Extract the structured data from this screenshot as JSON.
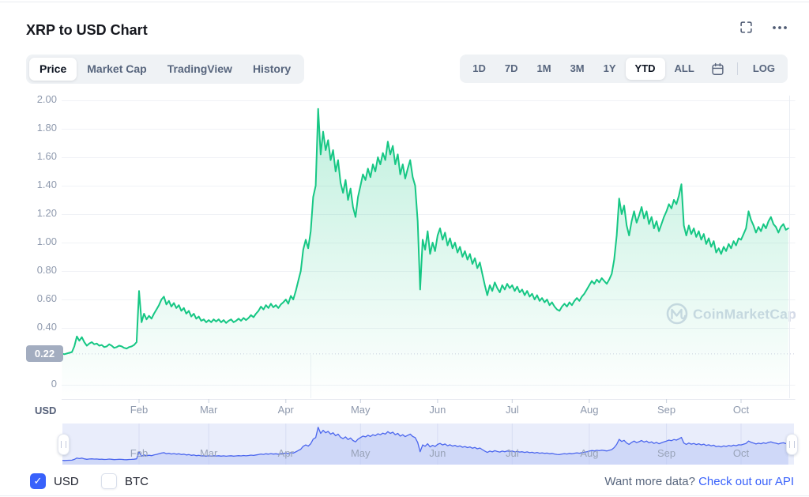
{
  "header": {
    "title": "XRP to USD Chart"
  },
  "toolbar": {
    "tabs": [
      {
        "label": "Price"
      },
      {
        "label": "Market Cap"
      },
      {
        "label": "TradingView"
      },
      {
        "label": "History"
      }
    ],
    "active_tab": "Price",
    "ranges": [
      {
        "label": "1D"
      },
      {
        "label": "7D"
      },
      {
        "label": "1M"
      },
      {
        "label": "3M"
      },
      {
        "label": "1Y"
      },
      {
        "label": "YTD"
      },
      {
        "label": "ALL"
      }
    ],
    "active_range": "YTD",
    "log_label": "LOG",
    "icons": [
      "calendar-icon"
    ]
  },
  "header_icons": [
    "fullscreen-icon",
    "more-options-icon"
  ],
  "axis": {
    "currency_label": "USD",
    "y_tick_labels": [
      "2.00",
      "1.80",
      "1.60",
      "1.40",
      "1.20",
      "1.00",
      "0.80",
      "0.60",
      "0.40",
      "0"
    ],
    "open_price_label": "0.22",
    "months": [
      "Feb",
      "Mar",
      "Apr",
      "May",
      "Jun",
      "Jul",
      "Aug",
      "Sep",
      "Oct"
    ]
  },
  "watermark_text": "CoinMarketCap",
  "legend": {
    "usd": {
      "label": "USD",
      "checked": true
    },
    "btc": {
      "label": "BTC",
      "checked": false
    }
  },
  "footer": {
    "prompt": "Want more data?",
    "link_label": "Check out our API"
  },
  "colors": {
    "price_line": "#16c784",
    "price_fill": "#16c784",
    "nav_line": "#4b66ee",
    "nav_fill": "#b9c6f5",
    "nav_bg": "#e9edfb",
    "accent_blue": "#3861fb",
    "open_badge": "#a3adc0",
    "grid": "#f0f2f6"
  },
  "chart_data": {
    "type": "area",
    "title": "XRP to USD Chart",
    "ylabel": "USD",
    "ylim": [
      0,
      2.0
    ],
    "y_ticks": [
      2.0,
      1.8,
      1.6,
      1.4,
      1.2,
      1.0,
      0.8,
      0.6,
      0.4,
      0
    ],
    "open_value": 0.22,
    "x_unit": "days from Jan 1 (YTD)",
    "month_tick_labels": [
      "Feb",
      "Mar",
      "Apr",
      "May",
      "Jun",
      "Jul",
      "Aug",
      "Sep",
      "Oct"
    ],
    "month_tick_days": [
      31,
      59,
      90,
      120,
      151,
      181,
      212,
      243,
      273
    ],
    "series": [
      {
        "name": "XRP/USD",
        "x_start_day": 0,
        "x_step_days": 1,
        "daily_prices": [
          0.22,
          0.215,
          0.22,
          0.225,
          0.23,
          0.27,
          0.34,
          0.31,
          0.335,
          0.3,
          0.275,
          0.29,
          0.3,
          0.285,
          0.29,
          0.275,
          0.28,
          0.265,
          0.27,
          0.285,
          0.275,
          0.26,
          0.265,
          0.275,
          0.27,
          0.26,
          0.255,
          0.265,
          0.27,
          0.28,
          0.3,
          0.66,
          0.44,
          0.5,
          0.46,
          0.485,
          0.465,
          0.5,
          0.53,
          0.56,
          0.6,
          0.62,
          0.565,
          0.59,
          0.55,
          0.575,
          0.54,
          0.56,
          0.52,
          0.54,
          0.5,
          0.52,
          0.48,
          0.5,
          0.465,
          0.48,
          0.45,
          0.46,
          0.44,
          0.455,
          0.44,
          0.46,
          0.445,
          0.46,
          0.44,
          0.455,
          0.435,
          0.45,
          0.46,
          0.44,
          0.45,
          0.465,
          0.45,
          0.47,
          0.455,
          0.47,
          0.49,
          0.475,
          0.5,
          0.52,
          0.55,
          0.53,
          0.56,
          0.54,
          0.57,
          0.545,
          0.56,
          0.54,
          0.565,
          0.58,
          0.6,
          0.57,
          0.625,
          0.6,
          0.66,
          0.73,
          0.8,
          0.95,
          1.02,
          0.96,
          1.08,
          1.32,
          1.4,
          1.94,
          1.62,
          1.78,
          1.65,
          1.72,
          1.58,
          1.65,
          1.5,
          1.58,
          1.42,
          1.35,
          1.44,
          1.3,
          1.38,
          1.25,
          1.18,
          1.32,
          1.4,
          1.48,
          1.44,
          1.52,
          1.46,
          1.55,
          1.5,
          1.6,
          1.55,
          1.63,
          1.58,
          1.71,
          1.62,
          1.68,
          1.55,
          1.62,
          1.48,
          1.55,
          1.45,
          1.52,
          1.58,
          1.46,
          1.4,
          1.15,
          0.67,
          1.02,
          0.95,
          1.08,
          0.92,
          1.0,
          0.94,
          1.05,
          1.1,
          1.02,
          1.07,
          0.98,
          1.03,
          0.96,
          1.0,
          0.93,
          0.97,
          0.9,
          0.94,
          0.88,
          0.92,
          0.85,
          0.89,
          0.82,
          0.86,
          0.78,
          0.7,
          0.63,
          0.7,
          0.66,
          0.72,
          0.68,
          0.65,
          0.7,
          0.67,
          0.71,
          0.68,
          0.7,
          0.66,
          0.69,
          0.65,
          0.67,
          0.63,
          0.66,
          0.62,
          0.64,
          0.6,
          0.63,
          0.59,
          0.61,
          0.58,
          0.6,
          0.56,
          0.58,
          0.55,
          0.53,
          0.52,
          0.55,
          0.57,
          0.55,
          0.58,
          0.56,
          0.59,
          0.61,
          0.59,
          0.62,
          0.64,
          0.67,
          0.7,
          0.73,
          0.71,
          0.74,
          0.72,
          0.75,
          0.73,
          0.71,
          0.74,
          0.78,
          0.88,
          1.05,
          1.31,
          1.2,
          1.26,
          1.12,
          1.05,
          1.15,
          1.22,
          1.14,
          1.19,
          1.25,
          1.17,
          1.22,
          1.13,
          1.18,
          1.1,
          1.15,
          1.08,
          1.13,
          1.18,
          1.22,
          1.27,
          1.24,
          1.3,
          1.27,
          1.33,
          1.41,
          1.12,
          1.05,
          1.12,
          1.06,
          1.1,
          1.04,
          1.08,
          1.02,
          1.06,
          0.99,
          1.03,
          0.97,
          1.01,
          0.93,
          0.96,
          0.92,
          0.97,
          0.94,
          0.99,
          0.96,
          1.01,
          0.98,
          1.03,
          1.02,
          1.06,
          1.1,
          1.22,
          1.16,
          1.12,
          1.07,
          1.11,
          1.08,
          1.13,
          1.1,
          1.15,
          1.18,
          1.13,
          1.11,
          1.07,
          1.11,
          1.13,
          1.09,
          1.1
        ]
      }
    ]
  }
}
